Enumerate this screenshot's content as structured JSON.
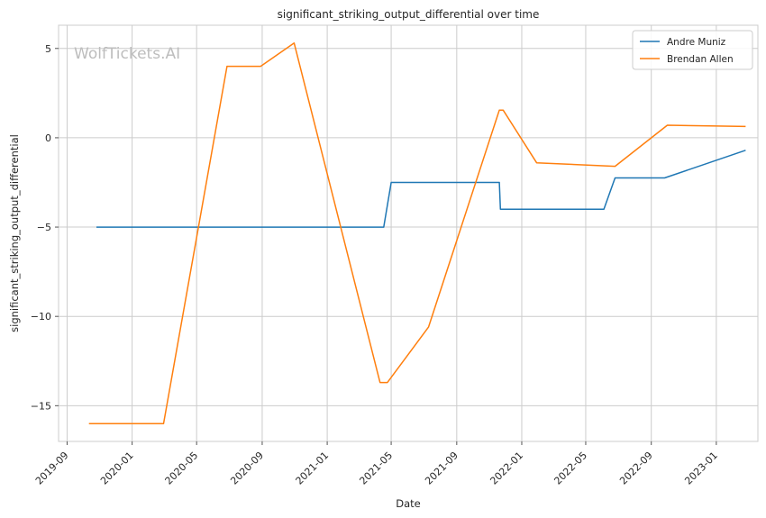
{
  "chart_data": {
    "type": "line",
    "title": "significant_striking_output_differential over time",
    "xlabel": "Date",
    "ylabel": "significant_striking_output_differential",
    "watermark": "WolfTickets.AI",
    "x_ticks": [
      "2019-09",
      "2020-01",
      "2020-05",
      "2020-09",
      "2021-01",
      "2021-05",
      "2021-09",
      "2022-01",
      "2022-05",
      "2022-09",
      "2023-01"
    ],
    "y_ticks": [
      5,
      0,
      -5,
      -10,
      -15
    ],
    "xlim": [
      "2019-08-16",
      "2023-03-20"
    ],
    "ylim": [
      -17.0,
      6.3
    ],
    "grid": true,
    "legend_position": "top-right",
    "series": [
      {
        "name": "Andre Muniz",
        "color": "#1f77b4",
        "points": [
          [
            "2019-10-26",
            -5.0
          ],
          [
            "2021-04-17",
            -5.0
          ],
          [
            "2021-05-01",
            -2.5
          ],
          [
            "2021-11-20",
            -2.5
          ],
          [
            "2021-11-22",
            -4.0
          ],
          [
            "2022-06-04",
            -4.0
          ],
          [
            "2022-06-25",
            -2.25
          ],
          [
            "2022-09-26",
            -2.25
          ],
          [
            "2023-02-25",
            -0.7
          ]
        ]
      },
      {
        "name": "Brendan Allen",
        "color": "#ff7f0e",
        "points": [
          [
            "2019-10-12",
            -16.0
          ],
          [
            "2020-02-29",
            -16.0
          ],
          [
            "2020-06-27",
            4.0
          ],
          [
            "2020-08-29",
            4.0
          ],
          [
            "2020-10-31",
            5.3
          ],
          [
            "2021-04-10",
            -13.7
          ],
          [
            "2021-04-24",
            -13.7
          ],
          [
            "2021-07-10",
            -10.6
          ],
          [
            "2021-11-20",
            1.55
          ],
          [
            "2021-11-27",
            1.55
          ],
          [
            "2022-01-29",
            -1.4
          ],
          [
            "2022-06-25",
            -1.6
          ],
          [
            "2022-10-01",
            0.7
          ],
          [
            "2023-02-25",
            0.63
          ]
        ]
      }
    ]
  }
}
